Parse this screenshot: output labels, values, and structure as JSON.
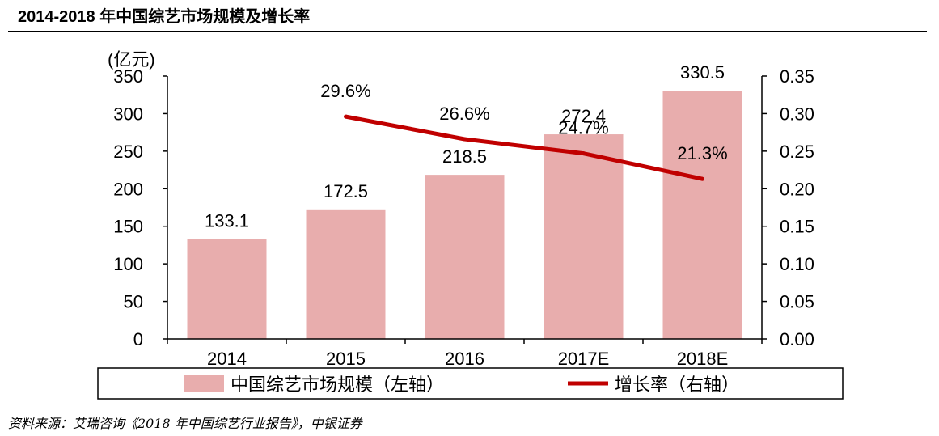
{
  "header": {
    "title": "2014-2018 年中国综艺市场规模及增长率"
  },
  "footer": {
    "source": "资料来源：艾瑞咨询《2018 年中国综艺行业报告》，中银证券"
  },
  "colors": {
    "bar": "#E8ADAD",
    "line": "#C00000",
    "axis": "#000000"
  },
  "chart_data": {
    "type": "bar",
    "title": "2014-2018 年中国综艺市场规模及增长率",
    "categories": [
      "2014",
      "2015",
      "2016",
      "2017E",
      "2018E"
    ],
    "series": [
      {
        "name": "中国综艺市场规模（左轴）",
        "type": "bar",
        "axis": "left",
        "values": [
          133.1,
          172.5,
          218.5,
          272.4,
          330.5
        ],
        "labels": [
          "133.1",
          "172.5",
          "218.5",
          "272.4",
          "330.5"
        ]
      },
      {
        "name": "增长率（右轴）",
        "type": "line",
        "axis": "right",
        "values": [
          null,
          0.296,
          0.266,
          0.247,
          0.213
        ],
        "labels": [
          "",
          "29.6%",
          "26.6%",
          "24.7%",
          "21.3%"
        ]
      }
    ],
    "ylabel": "(亿元)",
    "ylim": [
      0,
      350
    ],
    "yticks": [
      "0",
      "50",
      "100",
      "150",
      "200",
      "250",
      "300",
      "350"
    ],
    "y2lim": [
      0,
      0.35
    ],
    "y2ticks": [
      "0.00",
      "0.05",
      "0.10",
      "0.15",
      "0.20",
      "0.25",
      "0.30",
      "0.35"
    ],
    "legend": [
      "中国综艺市场规模（左轴）",
      "增长率（右轴）"
    ],
    "legend_position": "bottom",
    "grid": false
  }
}
